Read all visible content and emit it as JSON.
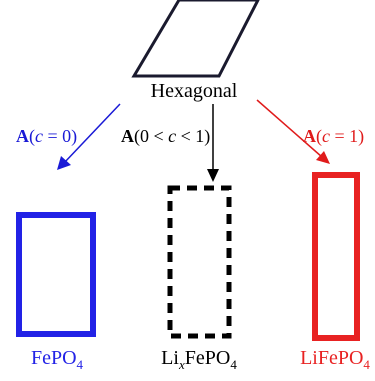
{
  "diagram": {
    "hexagonal_label": "Hexagonal",
    "arrows": {
      "left": {
        "label_bold": "A",
        "label_open": "(",
        "label_var": "c",
        "label_rest": " = 0)",
        "color": "#1a1ad6"
      },
      "middle": {
        "label_bold": "A",
        "label_open": "(0 < ",
        "label_var": "c",
        "label_rest": " < 1)",
        "color": "#000000"
      },
      "right": {
        "label_bold": "A",
        "label_open": "(",
        "label_var": "c",
        "label_rest": " = 1)",
        "color": "#e01b1b"
      }
    },
    "phases": {
      "left": {
        "name": "FePO",
        "subscript": "4",
        "color": "#2222e6",
        "border": "solid"
      },
      "middle": {
        "name_prefix": "Li",
        "name_var": "x",
        "name": "FePO",
        "subscript": "4",
        "color": "#000000",
        "border": "dashed"
      },
      "right": {
        "name": "LiFePO",
        "subscript": "4",
        "color": "#e82222",
        "border": "solid"
      }
    }
  }
}
